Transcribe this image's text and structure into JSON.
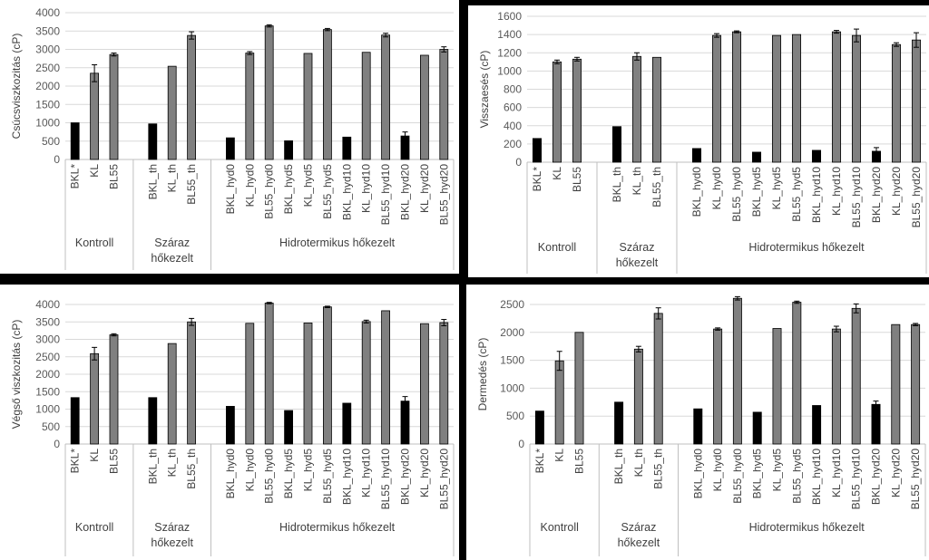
{
  "chart_data": [
    {
      "type": "bar",
      "ylabel": "Csúcsviszkozitás (cP)",
      "ylim": [
        0,
        4000
      ],
      "yticks": [
        0,
        500,
        1000,
        1500,
        2000,
        2500,
        3000,
        3500,
        4000
      ],
      "legend": "none",
      "grid": "horizontal",
      "colors": {
        "black_bar": "#000000",
        "gray_bar": "#808080",
        "grid": "#d9d9d9"
      },
      "groups": [
        {
          "label": "Kontroll",
          "categories": [
            "BKL*",
            "KL",
            "BL55"
          ],
          "values": [
            1000,
            2350,
            2860
          ],
          "errors": [
            0,
            230,
            40
          ]
        },
        {
          "label": "Száraz hőkezelt",
          "categories": [
            "BKL_th",
            "KL_th",
            "BL55_th"
          ],
          "values": [
            970,
            2540,
            3380
          ],
          "errors": [
            0,
            0,
            100
          ]
        },
        {
          "label": "Hidrotermikus hőkezelt",
          "categories": [
            "BKL_hyd0",
            "KL_hyd0",
            "BL55_hyd0",
            "BKL_hyd5",
            "KL_hyd5",
            "BL55_hyd5",
            "BKL_hyd10",
            "KL_hyd10",
            "BL55_hyd10",
            "BKL_hyd20",
            "KL_hyd20",
            "BL55_hyd20"
          ],
          "values": [
            590,
            2900,
            3640,
            510,
            2890,
            3540,
            610,
            2920,
            3390,
            640,
            2840,
            3000
          ],
          "errors": [
            0,
            40,
            30,
            0,
            0,
            30,
            0,
            0,
            50,
            110,
            0,
            70
          ]
        }
      ]
    },
    {
      "type": "bar",
      "ylabel": "Visszaesés (cP)",
      "ylim": [
        0,
        1600
      ],
      "yticks": [
        0,
        200,
        400,
        600,
        800,
        1000,
        1200,
        1400,
        1600
      ],
      "legend": "none",
      "grid": "horizontal",
      "colors": {
        "black_bar": "#000000",
        "gray_bar": "#808080",
        "grid": "#d9d9d9"
      },
      "groups": [
        {
          "label": "Kontroll",
          "categories": [
            "BKL*",
            "KL",
            "BL55"
          ],
          "values": [
            260,
            1100,
            1130
          ],
          "errors": [
            0,
            20,
            20
          ]
        },
        {
          "label": "Száraz hőkezelt",
          "categories": [
            "BKL_th",
            "KL_th",
            "BL55_th"
          ],
          "values": [
            390,
            1160,
            1150
          ],
          "errors": [
            0,
            40,
            0
          ]
        },
        {
          "label": "Hidrotermikus hőkezelt",
          "categories": [
            "BKL_hyd0",
            "KL_hyd0",
            "BL55_hyd0",
            "BKL_hyd5",
            "KL_hyd5",
            "BL55_hyd5",
            "BKL_hyd10",
            "KL_hyd10",
            "BL55_hyd10",
            "BKL_hyd20",
            "KL_hyd20",
            "BL55_hyd20"
          ],
          "values": [
            150,
            1390,
            1430,
            110,
            1390,
            1400,
            130,
            1430,
            1390,
            120,
            1290,
            1340
          ],
          "errors": [
            0,
            20,
            10,
            0,
            0,
            0,
            0,
            15,
            70,
            40,
            20,
            80
          ]
        }
      ]
    },
    {
      "type": "bar",
      "ylabel": "Végső viszkozitás (cP)",
      "ylim": [
        0,
        4000
      ],
      "yticks": [
        0,
        500,
        1000,
        1500,
        2000,
        2500,
        3000,
        3500,
        4000
      ],
      "legend": "none",
      "grid": "horizontal",
      "colors": {
        "black_bar": "#000000",
        "gray_bar": "#808080",
        "grid": "#d9d9d9"
      },
      "groups": [
        {
          "label": "Kontroll",
          "categories": [
            "BKL*",
            "KL",
            "BL55"
          ],
          "values": [
            1330,
            2590,
            3130
          ],
          "errors": [
            0,
            180,
            30
          ]
        },
        {
          "label": "Száraz hőkezelt",
          "categories": [
            "BKL_th",
            "KL_th",
            "BL55_th"
          ],
          "values": [
            1330,
            2880,
            3500
          ],
          "errors": [
            0,
            0,
            100
          ]
        },
        {
          "label": "Hidrotermikus hőkezelt",
          "categories": [
            "BKL_hyd0",
            "KL_hyd0",
            "BL55_hyd0",
            "BKL_hyd5",
            "KL_hyd5",
            "BL55_hyd5",
            "BKL_hyd10",
            "KL_hyd10",
            "BL55_hyd10",
            "BKL_hyd20",
            "KL_hyd20",
            "BL55_hyd20"
          ],
          "values": [
            1080,
            3460,
            4040,
            960,
            3470,
            3930,
            1170,
            3510,
            3820,
            1230,
            3450,
            3480
          ],
          "errors": [
            0,
            0,
            20,
            0,
            0,
            20,
            0,
            40,
            0,
            130,
            0,
            90
          ]
        }
      ]
    },
    {
      "type": "bar",
      "ylabel": "Dermedés (cP)",
      "ylim": [
        0,
        2500
      ],
      "yticks": [
        0,
        500,
        1000,
        1500,
        2000,
        2500
      ],
      "legend": "none",
      "grid": "horizontal",
      "colors": {
        "black_bar": "#000000",
        "gray_bar": "#808080",
        "grid": "#d9d9d9"
      },
      "groups": [
        {
          "label": "Kontroll",
          "categories": [
            "BKL*",
            "KL",
            "BL55"
          ],
          "values": [
            590,
            1490,
            2000
          ],
          "errors": [
            0,
            170,
            0
          ]
        },
        {
          "label": "Száraz hőkezelt",
          "categories": [
            "BKL_th",
            "KL_th",
            "BL55_th"
          ],
          "values": [
            750,
            1700,
            2340
          ],
          "errors": [
            0,
            50,
            100
          ]
        },
        {
          "label": "Hidrotermikus hőkezelt",
          "categories": [
            "BKL_hyd0",
            "KL_hyd0",
            "BL55_hyd0",
            "BKL_hyd5",
            "KL_hyd5",
            "BL55_hyd5",
            "BKL_hyd10",
            "KL_hyd10",
            "BL55_hyd10",
            "BKL_hyd20",
            "KL_hyd20",
            "BL55_hyd20"
          ],
          "values": [
            630,
            2060,
            2610,
            570,
            2070,
            2540,
            690,
            2060,
            2430,
            710,
            2140,
            2140
          ],
          "errors": [
            0,
            20,
            30,
            0,
            0,
            20,
            0,
            50,
            80,
            60,
            0,
            20
          ]
        }
      ]
    }
  ]
}
